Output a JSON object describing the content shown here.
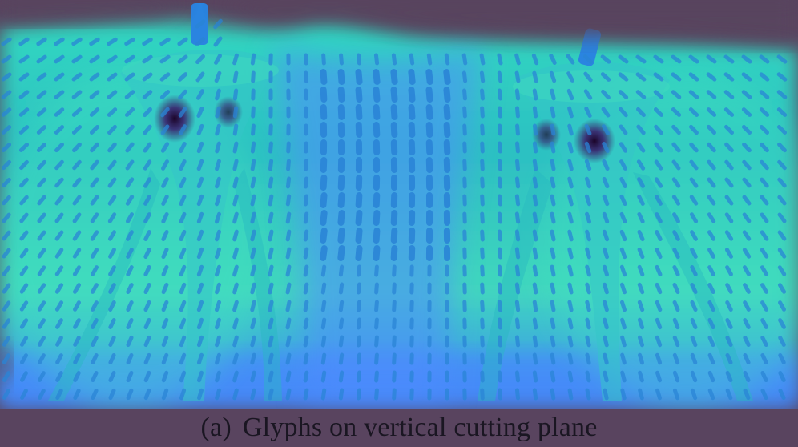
{
  "figure": {
    "caption": {
      "label": "(a)",
      "text": "Glyphs on vertical cutting plane"
    }
  },
  "colors": {
    "background": "#59445f",
    "field_high": "#39e6c3",
    "field_mid": "#2fc7c9",
    "field_low": "#6a7bff",
    "glyph": "#2a84d6",
    "vortex_core": "#2a0b3f"
  }
}
